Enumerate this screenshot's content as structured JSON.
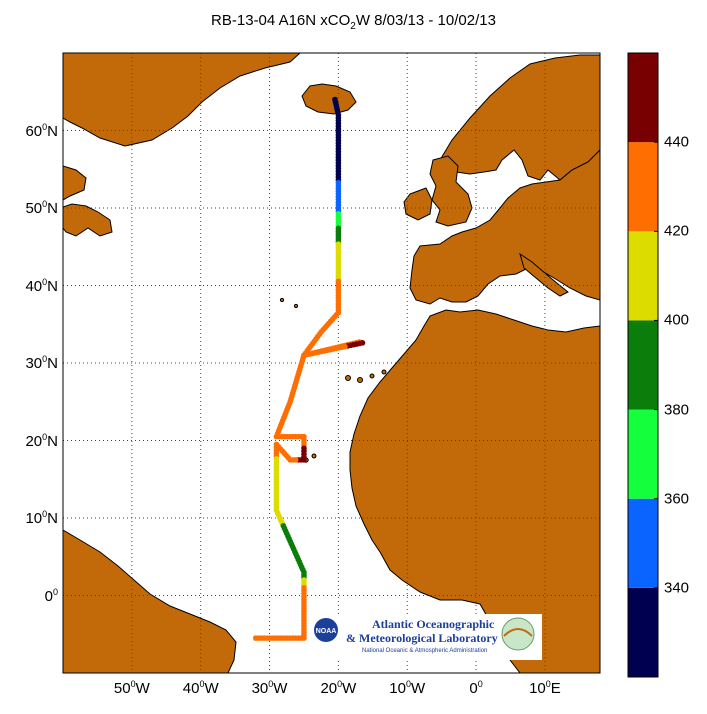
{
  "title": {
    "prefix": "RB-13-04 A16N xCO",
    "subscript": "2",
    "suffix": "W 8/03/13 - 10/02/13"
  },
  "map": {
    "lat_range": [
      -10,
      70
    ],
    "lon_range": [
      -60,
      18
    ],
    "lat_ticks": [
      {
        "value": 0,
        "num": "0",
        "deg": "0",
        "dir": ""
      },
      {
        "value": 10,
        "num": "10",
        "deg": "0",
        "dir": "N"
      },
      {
        "value": 20,
        "num": "20",
        "deg": "0",
        "dir": "N"
      },
      {
        "value": 30,
        "num": "30",
        "deg": "0",
        "dir": "N"
      },
      {
        "value": 40,
        "num": "40",
        "deg": "0",
        "dir": "N"
      },
      {
        "value": 50,
        "num": "50",
        "deg": "0",
        "dir": "N"
      },
      {
        "value": 60,
        "num": "60",
        "deg": "0",
        "dir": "N"
      }
    ],
    "lon_ticks": [
      {
        "value": -50,
        "num": "50",
        "deg": "0",
        "dir": "W"
      },
      {
        "value": -40,
        "num": "40",
        "deg": "0",
        "dir": "W"
      },
      {
        "value": -30,
        "num": "30",
        "deg": "0",
        "dir": "W"
      },
      {
        "value": -20,
        "num": "20",
        "deg": "0",
        "dir": "W"
      },
      {
        "value": -10,
        "num": "10",
        "deg": "0",
        "dir": "W"
      },
      {
        "value": 0,
        "num": "0",
        "deg": "0",
        "dir": ""
      },
      {
        "value": 10,
        "num": "10",
        "deg": "0",
        "dir": "E"
      }
    ],
    "land_color": "#c26a0a",
    "ocean_color": "#ffffff",
    "grid": true
  },
  "colorbar": {
    "range": [
      320,
      460
    ],
    "bands": [
      {
        "from": 320,
        "to": 340,
        "color": "#000050"
      },
      {
        "from": 340,
        "to": 360,
        "color": "#0a64ff"
      },
      {
        "from": 360,
        "to": 380,
        "color": "#14ff3c"
      },
      {
        "from": 380,
        "to": 400,
        "color": "#0a7d0a"
      },
      {
        "from": 400,
        "to": 420,
        "color": "#dcdc00"
      },
      {
        "from": 420,
        "to": 440,
        "color": "#ff6e00"
      },
      {
        "from": 440,
        "to": 460,
        "color": "#780000"
      }
    ],
    "tick_labels": [
      "340",
      "360",
      "380",
      "400",
      "420",
      "440"
    ]
  },
  "chart_data": {
    "type": "scatter",
    "title": "RB-13-04 A16N xCO2W 8/03/13 - 10/02/13",
    "xlabel": "",
    "ylabel": "",
    "x_unit": "longitude (deg)",
    "y_unit": "latitude (deg)",
    "xlim": [
      -60,
      18
    ],
    "ylim": [
      -10,
      70
    ],
    "color_variable_range": [
      320,
      460
    ],
    "track": [
      {
        "lon": -20.5,
        "lat": 64.0,
        "v": 330
      },
      {
        "lon": -20.0,
        "lat": 62.0,
        "v": 335
      },
      {
        "lon": -20.0,
        "lat": 58.0,
        "v": 333
      },
      {
        "lon": -20.0,
        "lat": 54.0,
        "v": 338
      },
      {
        "lon": -20.0,
        "lat": 50.0,
        "v": 352
      },
      {
        "lon": -20.0,
        "lat": 47.0,
        "v": 385
      },
      {
        "lon": -20.0,
        "lat": 45.0,
        "v": 405
      },
      {
        "lon": -20.0,
        "lat": 42.0,
        "v": 415
      },
      {
        "lon": -20.0,
        "lat": 38.0,
        "v": 430
      },
      {
        "lon": -20.0,
        "lat": 36.5,
        "v": 430
      },
      {
        "lon": -22.5,
        "lat": 34.0,
        "v": 430
      },
      {
        "lon": -25.0,
        "lat": 31.0,
        "v": 428
      },
      {
        "lon": -17.0,
        "lat": 32.7,
        "v": 430
      },
      {
        "lon": -16.5,
        "lat": 32.6,
        "v": 445
      },
      {
        "lon": -25.0,
        "lat": 31.0,
        "v": 428
      },
      {
        "lon": -27.0,
        "lat": 25.0,
        "v": 430
      },
      {
        "lon": -29.0,
        "lat": 20.5,
        "v": 432
      },
      {
        "lon": -25.0,
        "lat": 20.5,
        "v": 432
      },
      {
        "lon": -25.0,
        "lat": 17.5,
        "v": 448
      },
      {
        "lon": -27.0,
        "lat": 17.5,
        "v": 430
      },
      {
        "lon": -29.0,
        "lat": 19.5,
        "v": 425
      },
      {
        "lon": -29.0,
        "lat": 15.0,
        "v": 412
      },
      {
        "lon": -29.0,
        "lat": 11.0,
        "v": 410
      },
      {
        "lon": -27.5,
        "lat": 8.0,
        "v": 392
      },
      {
        "lon": -25.0,
        "lat": 3.0,
        "v": 385
      },
      {
        "lon": -25.0,
        "lat": 1.0,
        "v": 425
      },
      {
        "lon": -25.0,
        "lat": -5.5,
        "v": 430
      },
      {
        "lon": -32.0,
        "lat": -5.5,
        "v": 430
      }
    ]
  },
  "logo": {
    "line1": "Atlantic Oceanographic",
    "line2": "& Meteorological Laboratory",
    "line3": "National Oceanic & Atmospheric Administration",
    "badge": "NOAA"
  }
}
